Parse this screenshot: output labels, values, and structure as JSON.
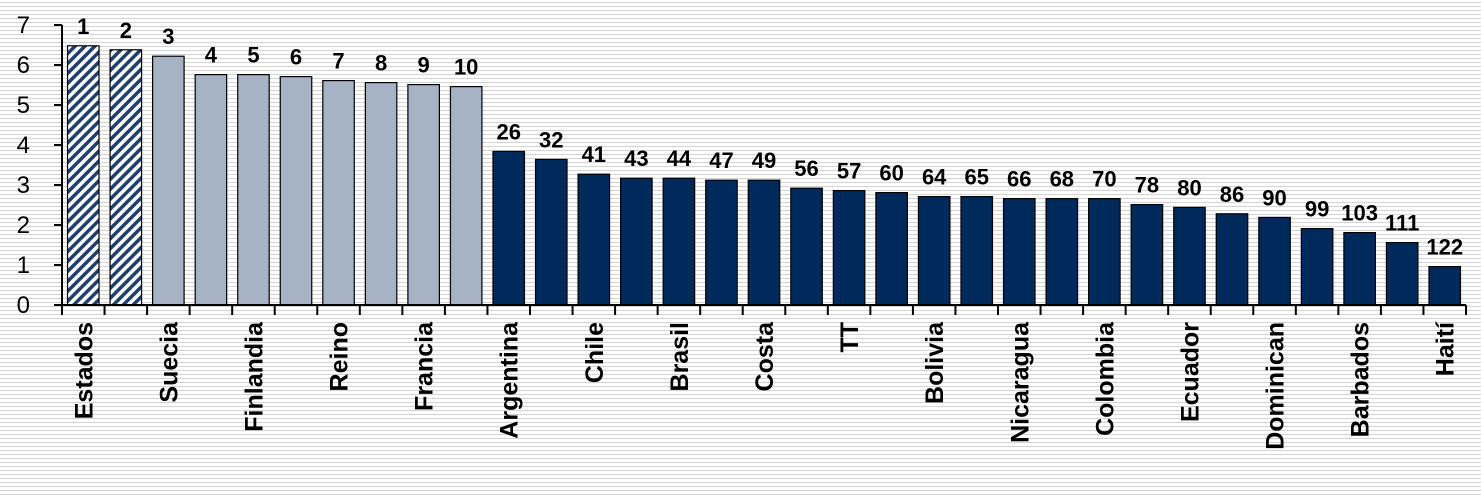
{
  "chart_data": {
    "type": "bar",
    "title": "",
    "xlabel": "",
    "ylabel": "",
    "ylim": [
      0,
      7
    ],
    "y_ticks": [
      "0",
      "1",
      "2",
      "3",
      "4",
      "5",
      "6",
      "7"
    ],
    "grid": false,
    "legend": "none",
    "bar_labels": [
      "1",
      "2",
      "3",
      "4",
      "5",
      "6",
      "7",
      "8",
      "9",
      "10",
      "26",
      "32",
      "41",
      "43",
      "44",
      "47",
      "49",
      "56",
      "57",
      "60",
      "64",
      "65",
      "66",
      "68",
      "70",
      "78",
      "80",
      "86",
      "90",
      "99",
      "103",
      "111",
      "122"
    ],
    "values": [
      6.48,
      6.38,
      6.22,
      5.76,
      5.76,
      5.71,
      5.61,
      5.56,
      5.51,
      5.46,
      3.84,
      3.64,
      3.27,
      3.17,
      3.17,
      3.12,
      3.12,
      2.92,
      2.86,
      2.81,
      2.71,
      2.71,
      2.66,
      2.66,
      2.66,
      2.51,
      2.44,
      2.28,
      2.19,
      1.91,
      1.81,
      1.56,
      0.96
    ],
    "groups": [
      "hatched",
      "hatched",
      "gray",
      "gray",
      "gray",
      "gray",
      "gray",
      "gray",
      "gray",
      "gray",
      "navy",
      "navy",
      "navy",
      "navy",
      "navy",
      "navy",
      "navy",
      "navy",
      "navy",
      "navy",
      "navy",
      "navy",
      "navy",
      "navy",
      "navy",
      "navy",
      "navy",
      "navy",
      "navy",
      "navy",
      "navy",
      "navy",
      "navy"
    ],
    "categories": [
      "Estados",
      "",
      "Suecia",
      "",
      "Finlandia",
      "",
      "Reino",
      "",
      "Francia",
      "",
      "Argentina",
      "",
      "Chile",
      "",
      "Brasil",
      "",
      "Costa",
      "",
      "TT",
      "",
      "Bolivia",
      "",
      "Nicaragua",
      "",
      "Colombia",
      "",
      "Ecuador",
      "",
      "Dominican",
      "",
      "Barbados",
      "",
      "Haití"
    ],
    "colors": {
      "hatched": "#1f3f6e",
      "gray": "#a6b3c4",
      "navy": "#002a5c",
      "axis": "#000000"
    }
  }
}
